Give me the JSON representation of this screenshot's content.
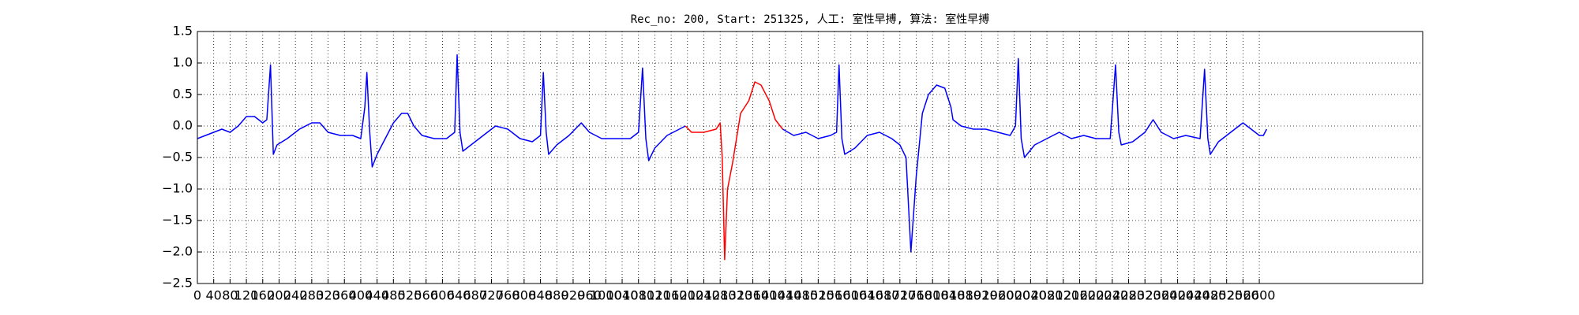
{
  "chart_data": {
    "type": "line",
    "title": "Rec_no: 200, Start: 251325, 人工: 室性早搏, 算法: 室性早搏",
    "xlim": [
      0,
      3000
    ],
    "xticks": [
      0,
      40,
      80,
      120,
      160,
      200,
      240,
      280,
      320,
      360,
      400,
      440,
      480,
      520,
      560,
      600,
      640,
      680,
      720,
      760,
      800,
      840,
      880,
      920,
      960,
      1000,
      1040,
      1080,
      1120,
      1160,
      1200,
      1240,
      1280,
      1320,
      1360,
      1400,
      1440,
      1480,
      1520,
      1560,
      1600,
      1640,
      1680,
      1720,
      1760,
      1800,
      1840,
      1880,
      1920,
      1960,
      2000,
      2040,
      2080,
      2120,
      2160,
      2200,
      2240,
      2280,
      2320,
      2360,
      2400,
      2440,
      2480,
      2520,
      2560,
      2600
    ],
    "ylim": [
      -2.5,
      1.5
    ],
    "yticks": [
      {
        "value": -2.5,
        "label": "−2.5"
      },
      {
        "value": -2,
        "label": "−2.0"
      },
      {
        "value": -1.5,
        "label": "−1.5"
      },
      {
        "value": -1,
        "label": "−1.0"
      },
      {
        "value": -0.5,
        "label": "−0.5"
      },
      {
        "value": 0,
        "label": "0.0"
      },
      0.5,
      {
        "value": 1,
        "label": "1.0"
      },
      1.5
    ],
    "grid": true,
    "series": [
      {
        "color": "#0000ff",
        "x": [
          0,
          20,
          40,
          60,
          80,
          100,
          120,
          140,
          160,
          170,
          179,
          186,
          195,
          220,
          250,
          280,
          300,
          320,
          350,
          380,
          400,
          410,
          415,
          422,
          428,
          440,
          460,
          480,
          500,
          515,
          530,
          550,
          580,
          610,
          630,
          636,
          643,
          650,
          670,
          700,
          730,
          760,
          790,
          820,
          840,
          847,
          854,
          860,
          880,
          910,
          940,
          960,
          990,
          1020,
          1060,
          1080,
          1090,
          1098,
          1105,
          1120,
          1150,
          1180,
          1195,
          1300,
          1433,
          1460,
          1490,
          1520,
          1550,
          1565,
          1571,
          1578,
          1585,
          1610,
          1640,
          1670,
          1700,
          1720,
          1735,
          1747,
          1760,
          1775,
          1790,
          1810,
          1830,
          1845,
          1850,
          1870,
          1900,
          1930,
          1960,
          1990,
          2003,
          2010,
          2017,
          2025,
          2050,
          2080,
          2110,
          2140,
          2170,
          2200,
          2235,
          2248,
          2256,
          2262,
          2290,
          2320,
          2340,
          2360,
          2390,
          2420,
          2455,
          2466,
          2474,
          2480,
          2500,
          2530,
          2560,
          2580,
          2600,
          2610,
          2618
        ],
        "values": [
          -0.2,
          -0.15,
          -0.1,
          -0.05,
          -0.1,
          0.0,
          0.15,
          0.15,
          0.05,
          0.1,
          0.97,
          -0.45,
          -0.3,
          -0.2,
          -0.05,
          0.05,
          0.05,
          -0.1,
          -0.15,
          -0.15,
          -0.2,
          0.3,
          0.85,
          -0.1,
          -0.65,
          -0.45,
          -0.2,
          0.05,
          0.2,
          0.2,
          0.0,
          -0.15,
          -0.2,
          -0.2,
          -0.1,
          1.13,
          -0.1,
          -0.4,
          -0.3,
          -0.15,
          0.0,
          -0.05,
          -0.2,
          -0.25,
          -0.15,
          0.85,
          -0.1,
          -0.45,
          -0.3,
          -0.15,
          0.05,
          -0.1,
          -0.2,
          -0.2,
          -0.2,
          -0.1,
          0.92,
          -0.2,
          -0.55,
          -0.35,
          -0.15,
          -0.05,
          0.0,
          null,
          -0.05,
          -0.15,
          -0.1,
          -0.2,
          -0.15,
          -0.1,
          0.97,
          -0.2,
          -0.45,
          -0.35,
          -0.15,
          -0.1,
          -0.2,
          -0.3,
          -0.5,
          -2.0,
          -0.8,
          0.2,
          0.5,
          0.65,
          0.6,
          0.3,
          0.1,
          0.0,
          -0.05,
          -0.05,
          -0.1,
          -0.15,
          0.0,
          1.07,
          -0.2,
          -0.5,
          -0.3,
          -0.2,
          -0.1,
          -0.2,
          -0.15,
          -0.2,
          -0.2,
          0.97,
          -0.1,
          -0.3,
          -0.25,
          -0.1,
          0.1,
          -0.1,
          -0.2,
          -0.15,
          -0.2,
          0.9,
          -0.2,
          -0.45,
          -0.25,
          -0.1,
          0.05,
          -0.05,
          -0.15,
          -0.15,
          -0.05
        ]
      },
      {
        "color": "#ff0000",
        "x": [
          1195,
          1210,
          1240,
          1270,
          1280,
          1285,
          1291,
          1298,
          1310,
          1330,
          1350,
          1365,
          1380,
          1400,
          1415,
          1433
        ],
        "values": [
          0.0,
          -0.1,
          -0.1,
          -0.05,
          0.05,
          -0.5,
          -2.12,
          -1.0,
          -0.6,
          0.2,
          0.4,
          0.7,
          0.65,
          0.4,
          0.1,
          -0.05
        ]
      }
    ]
  }
}
